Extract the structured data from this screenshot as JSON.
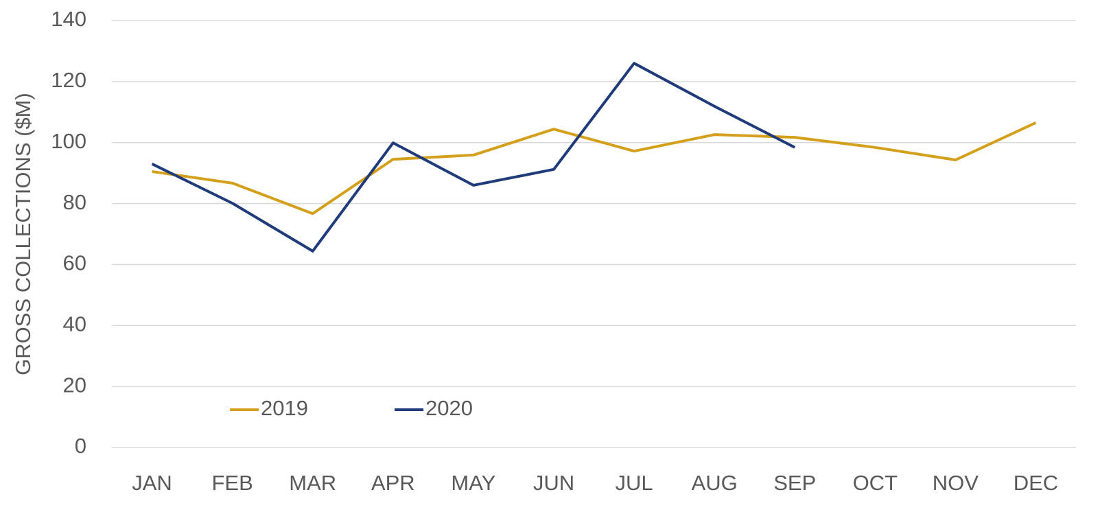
{
  "chart_data": {
    "type": "line",
    "y_label": "GROSS COLLECTIONS ($M)",
    "categories": [
      "JAN",
      "FEB",
      "MAR",
      "APR",
      "MAY",
      "JUN",
      "JUL",
      "AUG",
      "SEP",
      "OCT",
      "NOV",
      "DEC"
    ],
    "series": [
      {
        "name": "2019",
        "color": "#d4a01c",
        "values": [
          90.5,
          86.7,
          76.7,
          94.5,
          95.9,
          104.4,
          97.2,
          102.6,
          101.7,
          98.4,
          94.3,
          106.5
        ]
      },
      {
        "name": "2020",
        "color": "#1f3b7a",
        "values": [
          93,
          80.1,
          64.4,
          99.9,
          86,
          91.2,
          126,
          111.9,
          98.4,
          null,
          null,
          null
        ]
      }
    ],
    "ylim": [
      0,
      140
    ],
    "yticks": [
      0,
      20,
      40,
      60,
      80,
      100,
      120,
      140
    ],
    "grid": true,
    "legend": "lower left"
  }
}
